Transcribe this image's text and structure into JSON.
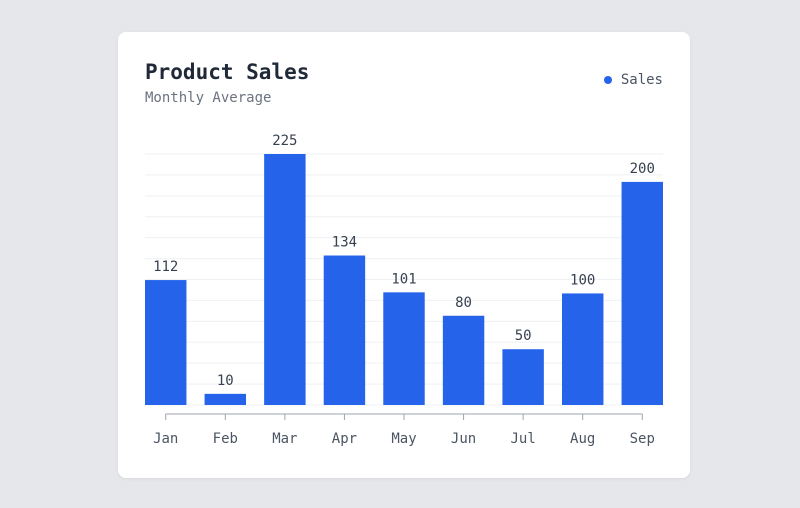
{
  "colors": {
    "bar": "#2563eb",
    "gridline": "#eef0f3",
    "axis": "#9ca3af"
  },
  "chart_data": {
    "type": "bar",
    "title": "Product Sales",
    "subtitle": "Monthly Average",
    "xlabel": "",
    "ylabel": "",
    "categories": [
      "Jan",
      "Feb",
      "Mar",
      "Apr",
      "May",
      "Jun",
      "Jul",
      "Aug",
      "Sep"
    ],
    "series": [
      {
        "name": "Sales",
        "values": [
          112,
          10,
          225,
          134,
          101,
          80,
          50,
          100,
          200
        ]
      }
    ],
    "ylim": [
      0,
      225
    ],
    "grid": true,
    "legend_position": "top-right",
    "data_labels": true
  }
}
